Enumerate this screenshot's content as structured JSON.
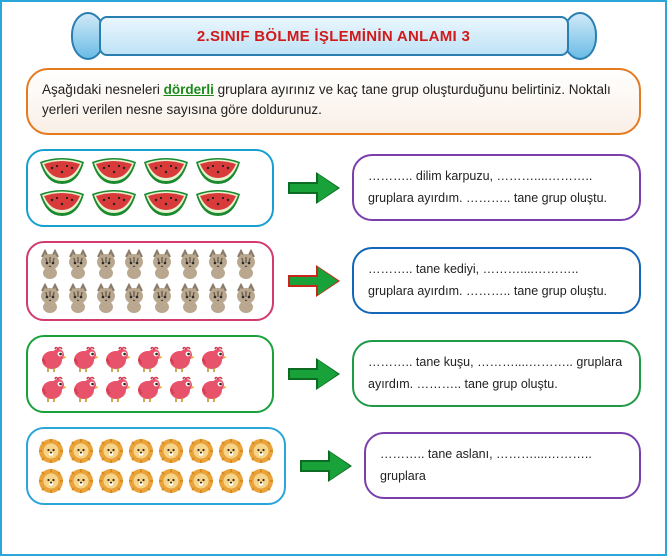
{
  "title": "2.SINIF BÖLME İŞLEMİNİN ANLAMI  3",
  "instruction_pre": "Aşağıdaki nesneleri ",
  "instruction_hl": "dörderli",
  "instruction_post": " gruplara ayırınız ve kaç tane grup oluşturduğunu belirtiniz. Noktalı yerleri verilen nesne sayısına göre doldurunuz.",
  "rows": [
    {
      "border_color": "#17a0cf",
      "arrow_fill": "#19a23a",
      "arrow_border": "#0d6b23",
      "answer_border": "#7b3fab",
      "icon": "watermelon",
      "count": 8,
      "per_line": 4,
      "answer": "……….. dilim karpuzu, ………....……….. gruplara ayırdım. ……….. tane grup oluştu."
    },
    {
      "border_color": "#d23b6b",
      "arrow_fill": "#19a23a",
      "arrow_border": "#c8261a",
      "answer_border": "#1466b8",
      "icon": "cat",
      "count": 16,
      "per_line": 8,
      "answer": "……….. tane kediyi, ………....……….. gruplara ayırdım. ……….. tane grup oluştu."
    },
    {
      "border_color": "#19a23a",
      "arrow_fill": "#19a23a",
      "arrow_border": "#0d6b23",
      "answer_border": "#1f9a46",
      "icon": "bird",
      "count": 12,
      "per_line": 6,
      "answer": "……….. tane kuşu, ………....……….. gruplara ayırdım. ……….. tane grup oluştu."
    },
    {
      "border_color": "#2aa6d8",
      "arrow_fill": "#19a23a",
      "arrow_border": "#0d6b23",
      "answer_border": "#7b3fab",
      "icon": "lion",
      "count": 16,
      "per_line": 8,
      "answer": "……….. tane aslanı, ………....……….. gruplara"
    }
  ],
  "colors": {
    "page_border": "#2aa6d8",
    "title_text": "#d11a1a",
    "instruction_border": "#e67a1f"
  }
}
